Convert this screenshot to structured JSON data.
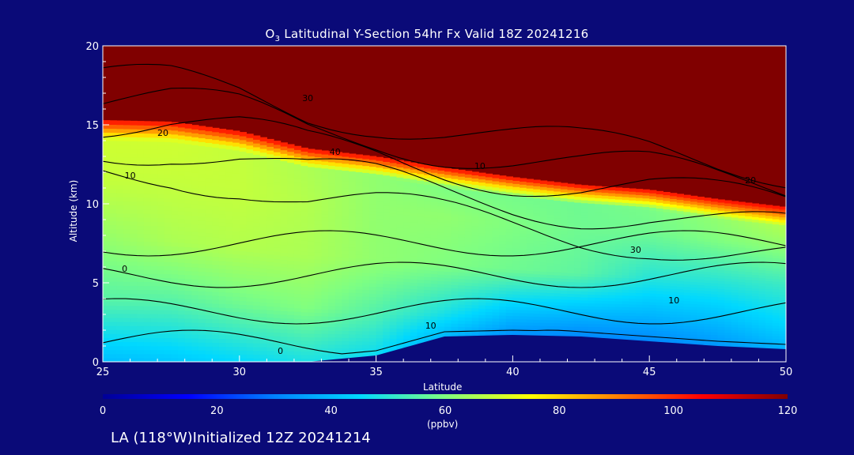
{
  "title": {
    "prefix": "O",
    "sub": "3",
    "rest": " Latitudinal Y-Section 54hr  Fx Valid 18Z 20241216"
  },
  "footer": "LA (118°W)Initialized 12Z 20241214",
  "chart_data": {
    "type": "heatmap",
    "title": "O3 Latitudinal Y-Section 54hr  Fx Valid 18Z 20241216",
    "xlabel": "Latitude",
    "ylabel": "Altitude (km)",
    "xlim": [
      25,
      50
    ],
    "ylim": [
      0,
      20
    ],
    "xticks": [
      "25",
      "30",
      "35",
      "40",
      "45",
      "50"
    ],
    "yticks": [
      "0",
      "5",
      "10",
      "15",
      "20"
    ],
    "colorbar": {
      "label": "(ppbv)",
      "range": [
        0,
        120
      ],
      "ticks": [
        "0",
        "20",
        "40",
        "60",
        "80",
        "100",
        "120"
      ],
      "colors": [
        "#000096",
        "#0000ff",
        "#0080ff",
        "#00d8ff",
        "#80ff80",
        "#ffff00",
        "#ff8000",
        "#ff0000",
        "#800000"
      ]
    },
    "altitude_levels_km": [
      0,
      1,
      2,
      3,
      4,
      5,
      6,
      7,
      8,
      9,
      10,
      11,
      12,
      13,
      14,
      15,
      16,
      17,
      18,
      19,
      20
    ],
    "latitudes": [
      25,
      27.5,
      30,
      32.5,
      35,
      37.5,
      40,
      42.5,
      45,
      47.5,
      50
    ],
    "tropopause_km": [
      15.3,
      15.2,
      14.6,
      13.5,
      13.0,
      12.3,
      11.7,
      11.2,
      10.9,
      10.3,
      9.8
    ],
    "terrain_km": [
      0.0,
      0.0,
      0.0,
      0.0,
      0.4,
      1.6,
      1.7,
      1.6,
      1.3,
      1.0,
      0.8
    ],
    "lower_troposphere_o3_ppbv": [
      [
        40,
        42,
        45,
        48,
        45,
        30,
        22,
        22,
        25,
        30,
        35
      ],
      [
        55,
        55,
        58,
        60,
        55,
        48,
        40,
        38,
        38,
        40,
        45
      ],
      [
        62,
        65,
        66,
        65,
        62,
        60,
        58,
        56,
        50,
        50,
        52
      ],
      [
        68,
        68,
        68,
        66,
        62,
        62,
        60,
        58,
        58,
        60,
        62
      ],
      [
        70,
        70,
        68,
        65,
        62,
        58,
        58,
        58,
        60,
        64,
        70
      ]
    ],
    "contour_labels": [
      "0",
      "10",
      "20",
      "30",
      "40"
    ]
  }
}
